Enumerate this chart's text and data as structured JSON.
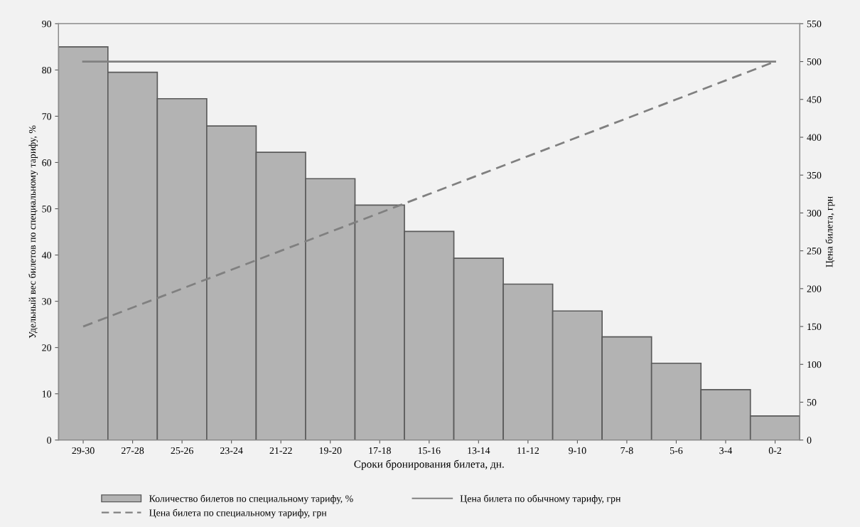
{
  "chart_data": {
    "type": "bar",
    "xlabel": "Сроки бронирования билета, дн.",
    "ylabel": "Удельный вес билетов по специальному тарифу, %",
    "y2label": "Цена билета, грн",
    "categories": [
      "29-30",
      "27-28",
      "25-26",
      "23-24",
      "21-22",
      "19-20",
      "17-18",
      "15-16",
      "13-14",
      "11-12",
      "9-10",
      "7-8",
      "5-6",
      "3-4",
      "0-2"
    ],
    "series": [
      {
        "name": "Количество билетов по специальному тарифу, %",
        "color": "#b3b3b3",
        "values": [
          85,
          79.5,
          73.8,
          67.9,
          62.2,
          56.5,
          50.8,
          45.1,
          39.3,
          33.7,
          27.9,
          22.3,
          16.6,
          10.9,
          5.2
        ]
      },
      {
        "name": "Цена билета по обычному тарифу, грн",
        "type": "line",
        "axis": "y2",
        "color": "#808080",
        "line_style": "solid",
        "values": [
          500,
          500,
          500,
          500,
          500,
          500,
          500,
          500,
          500,
          500,
          500,
          500,
          500,
          500,
          500
        ]
      },
      {
        "name": "Цена билета по специальному тарифу, грн",
        "type": "line",
        "axis": "y2",
        "color": "#808080",
        "line_style": "dashed",
        "values": [
          150,
          175,
          200,
          225,
          250,
          275,
          300,
          325,
          350,
          375,
          400,
          425,
          450,
          475,
          500
        ]
      }
    ],
    "ylim": [
      0,
      90
    ],
    "yticks": [
      0,
      10,
      20,
      30,
      40,
      50,
      60,
      70,
      80,
      90
    ],
    "y2lim": [
      0,
      550
    ],
    "y2ticks": [
      0,
      50,
      100,
      150,
      200,
      250,
      300,
      350,
      400,
      450,
      500,
      550
    ],
    "grid": false,
    "legend": "bottom",
    "marker": "none"
  }
}
